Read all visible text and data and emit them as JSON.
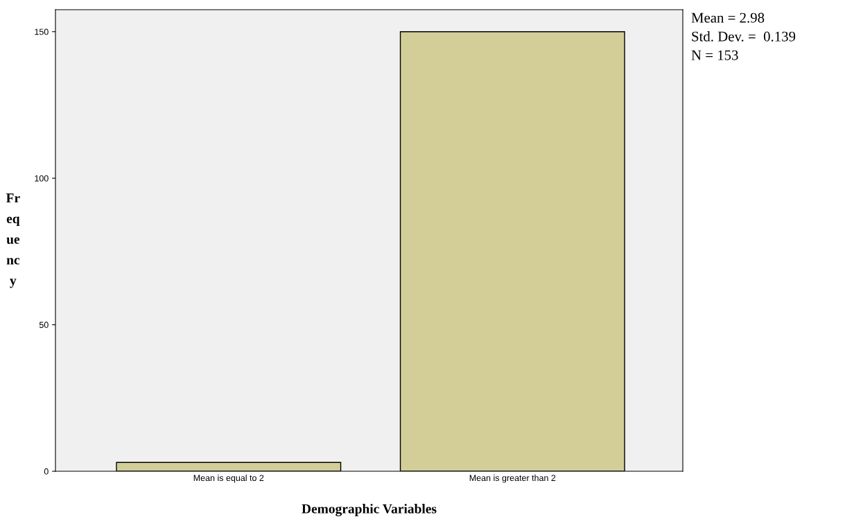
{
  "chart_data": {
    "type": "bar",
    "categories": [
      "Mean is equal to 2",
      "Mean is greater than 2"
    ],
    "values": [
      3,
      150
    ],
    "color": "#d3ce98",
    "xlabel": "Demographic Variables",
    "ylabel": "Fr\neq\nue\nnc\ny",
    "ylim": [
      0,
      157.5
    ],
    "yticks": [
      0,
      50,
      100,
      150
    ],
    "grid": false,
    "annotations": [
      "Mean = 2.98",
      "Std. Dev. =  0.139",
      "N = 153"
    ]
  }
}
